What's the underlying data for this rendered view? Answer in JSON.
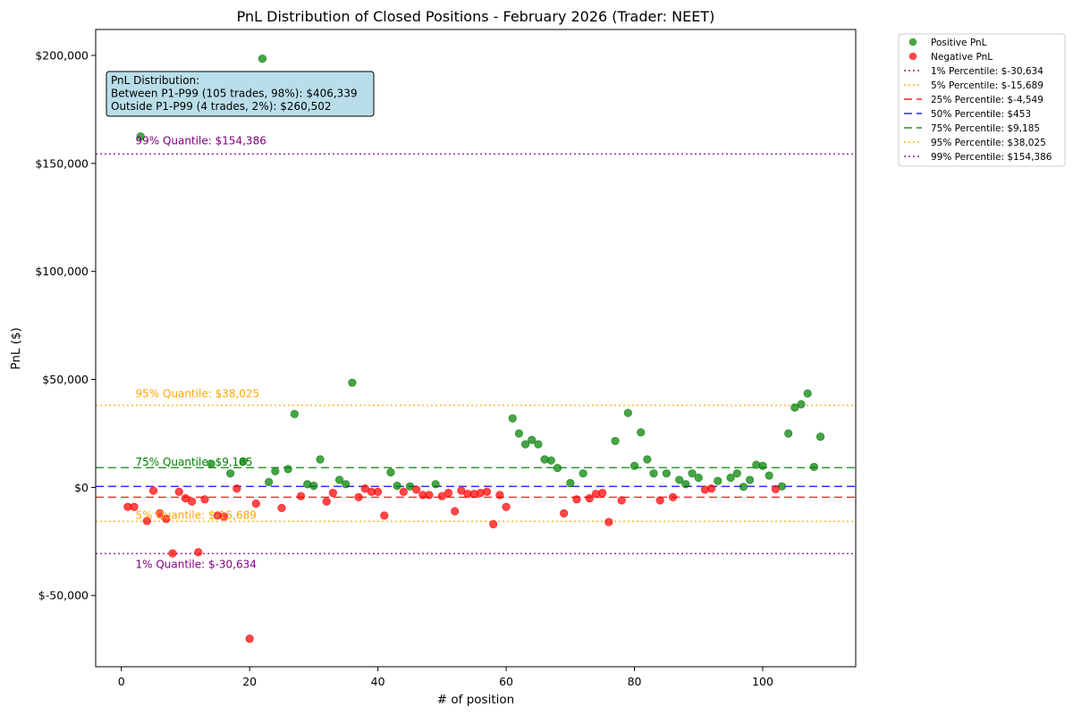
{
  "chart_data": {
    "type": "scatter",
    "title": "PnL Distribution of Closed Positions - February 2026 (Trader: NEET)",
    "xlabel": "# of position",
    "ylabel": "PnL ($)",
    "xlim": [
      -4,
      114.5
    ],
    "ylim": [
      -83000,
      212000
    ],
    "x_ticks": [
      0,
      20,
      40,
      60,
      80,
      100
    ],
    "y_ticks": [
      -50000,
      0,
      50000,
      100000,
      150000,
      200000
    ],
    "y_tick_labels": [
      "$-50,000",
      "$0",
      "$50,000",
      "$100,000",
      "$150,000",
      "$200,000"
    ],
    "colors": {
      "positive": "#008000",
      "negative": "#ff0000"
    },
    "series": [
      {
        "name": "Positive PnL",
        "color": "#008000",
        "points": [
          [
            3,
            162500
          ],
          [
            14,
            11000
          ],
          [
            17,
            6500
          ],
          [
            19,
            12000
          ],
          [
            22,
            198500
          ],
          [
            23,
            2500
          ],
          [
            24,
            7500
          ],
          [
            26,
            8500
          ],
          [
            27,
            34000
          ],
          [
            29,
            1500
          ],
          [
            30,
            800
          ],
          [
            31,
            13000
          ],
          [
            34,
            3500
          ],
          [
            35,
            1500
          ],
          [
            36,
            48500
          ],
          [
            42,
            7000
          ],
          [
            43,
            800
          ],
          [
            45,
            500
          ],
          [
            49,
            1500
          ],
          [
            61,
            32000
          ],
          [
            62,
            25000
          ],
          [
            63,
            20000
          ],
          [
            64,
            22000
          ],
          [
            65,
            20000
          ],
          [
            66,
            13000
          ],
          [
            67,
            12500
          ],
          [
            68,
            9000
          ],
          [
            70,
            2000
          ],
          [
            72,
            6500
          ],
          [
            77,
            21500
          ],
          [
            79,
            34500
          ],
          [
            80,
            10000
          ],
          [
            81,
            25500
          ],
          [
            82,
            13000
          ],
          [
            83,
            6500
          ],
          [
            85,
            6500
          ],
          [
            87,
            3500
          ],
          [
            88,
            1500
          ],
          [
            89,
            6500
          ],
          [
            90,
            4500
          ],
          [
            93,
            3000
          ],
          [
            95,
            4500
          ],
          [
            96,
            6500
          ],
          [
            97,
            300
          ],
          [
            98,
            3500
          ],
          [
            99,
            10500
          ],
          [
            100,
            10000
          ],
          [
            101,
            5500
          ],
          [
            103,
            500
          ],
          [
            104,
            25000
          ],
          [
            105,
            37000
          ],
          [
            106,
            38500
          ],
          [
            107,
            43500
          ],
          [
            108,
            9500
          ],
          [
            109,
            23500
          ]
        ]
      },
      {
        "name": "Negative PnL",
        "color": "#ff0000",
        "points": [
          [
            1,
            -9000
          ],
          [
            2,
            -9000
          ],
          [
            4,
            -15500
          ],
          [
            5,
            -1500
          ],
          [
            6,
            -12000
          ],
          [
            7,
            -14500
          ],
          [
            8,
            -30500
          ],
          [
            9,
            -2000
          ],
          [
            10,
            -5000
          ],
          [
            11,
            -6500
          ],
          [
            12,
            -30000
          ],
          [
            13,
            -5500
          ],
          [
            15,
            -13000
          ],
          [
            16,
            -13500
          ],
          [
            18,
            -500
          ],
          [
            20,
            -70000
          ],
          [
            21,
            -7500
          ],
          [
            25,
            -9500
          ],
          [
            28,
            -4000
          ],
          [
            32,
            -6500
          ],
          [
            33,
            -2500
          ],
          [
            37,
            -4500
          ],
          [
            38,
            -500
          ],
          [
            39,
            -2000
          ],
          [
            40,
            -2000
          ],
          [
            41,
            -13000
          ],
          [
            44,
            -2000
          ],
          [
            46,
            -1000
          ],
          [
            47,
            -3500
          ],
          [
            48,
            -3500
          ],
          [
            50,
            -4000
          ],
          [
            51,
            -2500
          ],
          [
            52,
            -11000
          ],
          [
            53,
            -1500
          ],
          [
            54,
            -3000
          ],
          [
            55,
            -3000
          ],
          [
            56,
            -2500
          ],
          [
            57,
            -2000
          ],
          [
            58,
            -17000
          ],
          [
            59,
            -3500
          ],
          [
            60,
            -9000
          ],
          [
            69,
            -12000
          ],
          [
            71,
            -5500
          ],
          [
            73,
            -5000
          ],
          [
            74,
            -3000
          ],
          [
            75,
            -2500
          ],
          [
            76,
            -16000
          ],
          [
            78,
            -6000
          ],
          [
            84,
            -6000
          ],
          [
            86,
            -4500
          ],
          [
            91,
            -1000
          ],
          [
            92,
            -500
          ],
          [
            102,
            -800
          ]
        ]
      }
    ],
    "quantiles": [
      {
        "key": "p1",
        "value": -30634,
        "color": "#800080",
        "dash": "2,3",
        "width": 1.5,
        "legend": "1% Percentile: $-30,634",
        "annotation": "1% Quantile: $-30,634",
        "label_dy": 16
      },
      {
        "key": "p5",
        "value": -15689,
        "color": "#ffa500",
        "dash": "2,3",
        "width": 1.5,
        "legend": "5% Percentile: $-15,689",
        "annotation": "5% Quantile: $-15,689",
        "label_dy": -3
      },
      {
        "key": "p25",
        "value": -4549,
        "color": "#ff0000",
        "dash": "9,5",
        "width": 1.5,
        "legend": "25% Percentile: $-4,549",
        "annotation": "",
        "label_dy": 0
      },
      {
        "key": "p50",
        "value": 453,
        "color": "#0000ff",
        "dash": "9,5",
        "width": 1.5,
        "legend": "50% Percentile: $453",
        "annotation": "",
        "label_dy": 0
      },
      {
        "key": "p75",
        "value": 9185,
        "color": "#008000",
        "dash": "9,5",
        "width": 1.5,
        "legend": "75% Percentile: $9,185",
        "annotation": "75% Quantile: $9,185",
        "label_dy": -2
      },
      {
        "key": "p95",
        "value": 38025,
        "color": "#ffa500",
        "dash": "2,3",
        "width": 1.5,
        "legend": "95% Percentile: $38,025",
        "annotation": "95% Quantile: $38,025",
        "label_dy": -9
      },
      {
        "key": "p99",
        "value": 154386,
        "color": "#800080",
        "dash": "2,3",
        "width": 1.5,
        "legend": "99% Percentile: $154,386",
        "annotation": "99% Quantile: $154,386",
        "label_dy": -11
      }
    ],
    "info_box": {
      "lines": [
        "PnL Distribution:",
        "Between P1-P99 (105 trades, 98%): $406,339",
        "Outside P1-P99 (4 trades, 2%): $260,502"
      ],
      "background": "#add8e6"
    },
    "legend_position": "outside-top-right"
  }
}
